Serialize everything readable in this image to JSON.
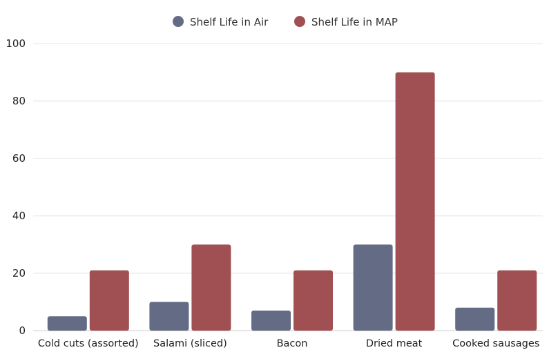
{
  "chart_data": {
    "type": "bar",
    "title": "",
    "xlabel": "",
    "ylabel": "",
    "categories": [
      "Cold cuts (assorted)",
      "Salami (sliced)",
      "Bacon",
      "Dried meat",
      "Cooked sausages"
    ],
    "series": [
      {
        "name": "Shelf Life in Air",
        "color": "#636b85",
        "values": [
          5,
          10,
          7,
          30,
          8
        ]
      },
      {
        "name": "Shelf Life in MAP",
        "color": "#a05052",
        "values": [
          21,
          30,
          21,
          90,
          21
        ]
      }
    ],
    "ylim": [
      0,
      100
    ],
    "yticks": [
      0,
      20,
      40,
      60,
      80,
      100
    ],
    "grid": true,
    "legend_position": "top-center"
  }
}
